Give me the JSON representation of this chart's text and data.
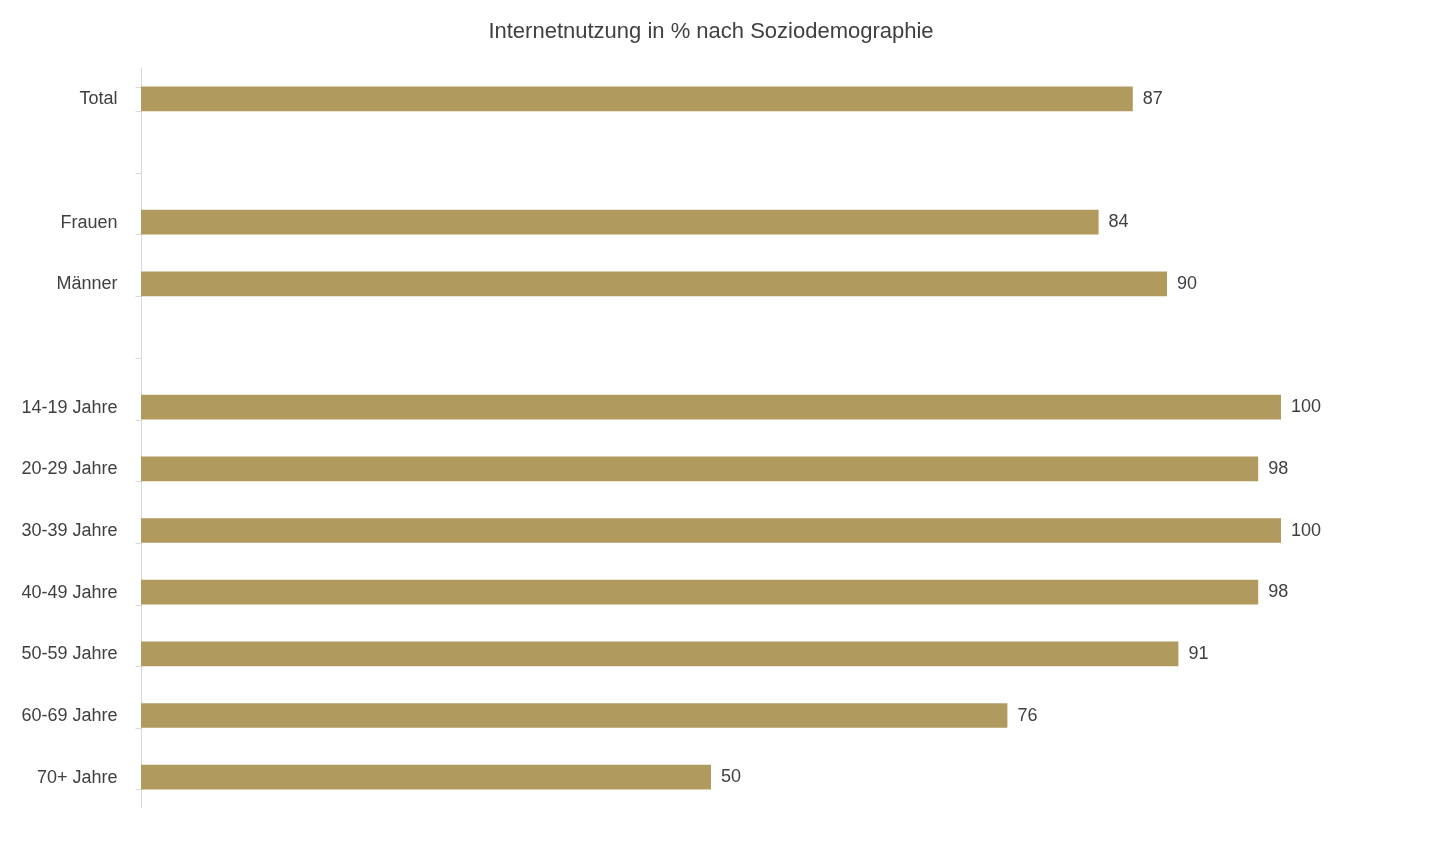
{
  "chart_data": {
    "type": "bar",
    "orientation": "horizontal",
    "title": "Internetnutzung in % nach Soziodemographie",
    "categories": [
      "Total",
      null,
      "Frauen",
      "Männer",
      null,
      "14-19 Jahre",
      "20-29 Jahre",
      "30-39 Jahre",
      "40-49 Jahre",
      "50-59 Jahre",
      "60-69 Jahre",
      "70+ Jahre"
    ],
    "values": [
      87,
      null,
      84,
      90,
      null,
      100,
      98,
      100,
      98,
      91,
      76,
      50
    ],
    "color": "#b19a5e",
    "data_labels": true
  }
}
